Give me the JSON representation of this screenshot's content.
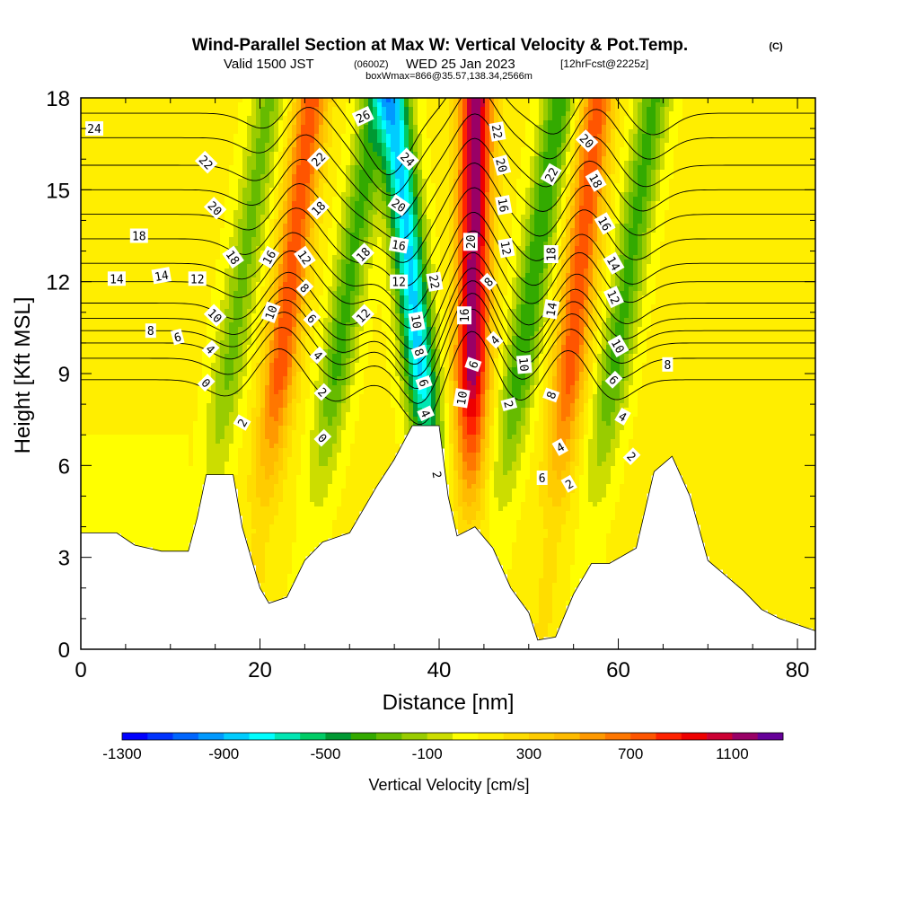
{
  "title": {
    "main": "Wind-Parallel Section at Max W: Vertical Velocity & Pot.Temp.",
    "copyright": "(C)",
    "valid_prefix": "Valid 1500 JST",
    "valid_utc": "(0600Z)",
    "valid_date": "WED 25 Jan 2023",
    "forecast_info": "[12hrFcst@2225z]",
    "box_info": "boxWmax=866@35.57,138.34,2566m"
  },
  "chart_data": {
    "type": "heatmap",
    "xlabel": "Distance [nm]",
    "ylabel": "Height [Kft MSL]",
    "xlim": [
      0,
      82
    ],
    "ylim": [
      0,
      18
    ],
    "xticks": [
      0,
      20,
      40,
      60,
      80
    ],
    "yticks": [
      0,
      3,
      6,
      9,
      12,
      15,
      18
    ],
    "colorbar": {
      "label": "Vertical Velocity [cm/s]",
      "min": -1300,
      "max": 1300,
      "step": 100,
      "tick_labels": [
        "-1300",
        "-900",
        "-500",
        "-100",
        "300",
        "700",
        "1100"
      ],
      "colors": [
        "#0000ff",
        "#0033ff",
        "#0066ff",
        "#0099ff",
        "#00ccff",
        "#00ffff",
        "#00e6b3",
        "#00cc66",
        "#009933",
        "#33aa00",
        "#66bb00",
        "#99cc00",
        "#ccdd00",
        "#ffff00",
        "#ffee00",
        "#ffdd00",
        "#ffcc00",
        "#ffbb00",
        "#ff9900",
        "#ff7700",
        "#ff5500",
        "#ff2200",
        "#ee0000",
        "#cc0033",
        "#990066",
        "#660099"
      ]
    },
    "terrain_top_kft": [
      [
        0,
        3.8
      ],
      [
        4,
        3.8
      ],
      [
        6,
        3.4
      ],
      [
        9,
        3.2
      ],
      [
        12,
        3.2
      ],
      [
        13,
        4.3
      ],
      [
        14,
        5.7
      ],
      [
        17,
        5.7
      ],
      [
        18,
        4.0
      ],
      [
        20,
        2.0
      ],
      [
        21,
        1.5
      ],
      [
        23,
        1.7
      ],
      [
        25,
        2.9
      ],
      [
        27,
        3.5
      ],
      [
        30,
        3.8
      ],
      [
        33,
        5.3
      ],
      [
        35,
        6.2
      ],
      [
        37,
        7.3
      ],
      [
        40,
        7.3
      ],
      [
        41,
        5.0
      ],
      [
        42,
        3.7
      ],
      [
        44,
        4.0
      ],
      [
        46,
        3.3
      ],
      [
        48,
        2.0
      ],
      [
        50,
        1.2
      ],
      [
        51,
        0.3
      ],
      [
        53,
        0.4
      ],
      [
        55,
        1.8
      ],
      [
        57,
        2.8
      ],
      [
        59,
        2.8
      ],
      [
        62,
        3.3
      ],
      [
        64,
        5.8
      ],
      [
        66,
        6.3
      ],
      [
        68,
        5.0
      ],
      [
        70,
        2.9
      ],
      [
        72,
        2.4
      ],
      [
        74,
        1.9
      ],
      [
        76,
        1.3
      ],
      [
        78,
        1.0
      ],
      [
        80,
        0.8
      ],
      [
        82,
        0.6
      ]
    ],
    "velocity_bands": [
      {
        "center_x": 15,
        "lean": 0.5,
        "value": -350
      },
      {
        "center_x": 21,
        "lean": 0.4,
        "value": 650
      },
      {
        "center_x": 27,
        "lean": 0.5,
        "value": -450
      },
      {
        "center_x": 39,
        "lean": -0.35,
        "value": -950
      },
      {
        "center_x": 43.5,
        "lean": 0.05,
        "value": 1050
      },
      {
        "center_x": 47.5,
        "lean": 0.5,
        "value": -500
      },
      {
        "center_x": 53.5,
        "lean": 0.35,
        "value": 650
      },
      {
        "center_x": 58,
        "lean": 0.5,
        "value": -450
      }
    ],
    "theta_contours": [
      {
        "label": "0",
        "height_kft": 8.8
      },
      {
        "label": "2",
        "height_kft": 9.5
      },
      {
        "label": "4",
        "height_kft": 10.0
      },
      {
        "label": "6",
        "height_kft": 10.4
      },
      {
        "label": "8",
        "height_kft": 10.8
      },
      {
        "label": "10",
        "height_kft": 11.3
      },
      {
        "label": "12",
        "height_kft": 12.0
      },
      {
        "label": "14",
        "height_kft": 12.6
      },
      {
        "label": "16",
        "height_kft": 13.4
      },
      {
        "label": "18",
        "height_kft": 14.2
      },
      {
        "label": "20",
        "height_kft": 15.0
      },
      {
        "label": "22",
        "height_kft": 15.8
      },
      {
        "label": "24",
        "height_kft": 16.7
      },
      {
        "label": "26",
        "height_kft": 17.5
      }
    ],
    "contour_labels": [
      {
        "text": "24",
        "x": 1.5,
        "y": 17.0,
        "rot": 0
      },
      {
        "text": "22",
        "x": 14,
        "y": 15.9,
        "rot": 45
      },
      {
        "text": "20",
        "x": 15,
        "y": 14.4,
        "rot": 45
      },
      {
        "text": "18",
        "x": 6.5,
        "y": 13.5,
        "rot": 0
      },
      {
        "text": "18",
        "x": 17,
        "y": 12.8,
        "rot": 55
      },
      {
        "text": "16",
        "x": 21,
        "y": 12.8,
        "rot": -60
      },
      {
        "text": "14",
        "x": 4,
        "y": 12.1,
        "rot": 0
      },
      {
        "text": "14",
        "x": 9,
        "y": 12.2,
        "rot": -10
      },
      {
        "text": "12",
        "x": 13,
        "y": 12.1,
        "rot": 0
      },
      {
        "text": "12",
        "x": 25,
        "y": 12.8,
        "rot": 55
      },
      {
        "text": "8",
        "x": 25,
        "y": 11.8,
        "rot": 45
      },
      {
        "text": "6",
        "x": 25.8,
        "y": 10.8,
        "rot": 45
      },
      {
        "text": "10",
        "x": 15,
        "y": 10.9,
        "rot": 45
      },
      {
        "text": "10",
        "x": 21.2,
        "y": 11.0,
        "rot": -70
      },
      {
        "text": "8",
        "x": 7.8,
        "y": 10.4,
        "rot": 0
      },
      {
        "text": "6",
        "x": 10.8,
        "y": 10.2,
        "rot": -15
      },
      {
        "text": "4",
        "x": 14.5,
        "y": 9.8,
        "rot": 45
      },
      {
        "text": "4",
        "x": 26.5,
        "y": 9.6,
        "rot": 45
      },
      {
        "text": "0",
        "x": 14,
        "y": 8.7,
        "rot": 45
      },
      {
        "text": "2",
        "x": 18,
        "y": 7.4,
        "rot": -60
      },
      {
        "text": "2",
        "x": 27,
        "y": 8.4,
        "rot": 45
      },
      {
        "text": "0",
        "x": 27,
        "y": 6.9,
        "rot": 45
      },
      {
        "text": "26",
        "x": 31.5,
        "y": 17.4,
        "rot": -25
      },
      {
        "text": "22",
        "x": 26.5,
        "y": 16.0,
        "rot": -45
      },
      {
        "text": "18",
        "x": 26.5,
        "y": 14.4,
        "rot": -45
      },
      {
        "text": "18",
        "x": 31.5,
        "y": 12.9,
        "rot": -45
      },
      {
        "text": "12",
        "x": 31.5,
        "y": 10.9,
        "rot": -45
      },
      {
        "text": "24",
        "x": 36.5,
        "y": 16.0,
        "rot": 45
      },
      {
        "text": "20",
        "x": 35.5,
        "y": 14.5,
        "rot": 35
      },
      {
        "text": "16",
        "x": 35.5,
        "y": 13.2,
        "rot": 10
      },
      {
        "text": "12",
        "x": 35.5,
        "y": 12.0,
        "rot": 0
      },
      {
        "text": "22",
        "x": 39.5,
        "y": 12.0,
        "rot": 80
      },
      {
        "text": "10",
        "x": 37.5,
        "y": 10.7,
        "rot": 80
      },
      {
        "text": "8",
        "x": 37.8,
        "y": 9.7,
        "rot": 70
      },
      {
        "text": "6",
        "x": 38.3,
        "y": 8.7,
        "rot": 70
      },
      {
        "text": "4",
        "x": 38.5,
        "y": 7.7,
        "rot": 65
      },
      {
        "text": "2",
        "x": 39.8,
        "y": 5.7,
        "rot": 80
      },
      {
        "text": "20",
        "x": 43.5,
        "y": 13.3,
        "rot": -90
      },
      {
        "text": "16",
        "x": 42.8,
        "y": 10.9,
        "rot": -90
      },
      {
        "text": "10",
        "x": 42.5,
        "y": 8.2,
        "rot": -80
      },
      {
        "text": "6",
        "x": 43.8,
        "y": 9.3,
        "rot": -70
      },
      {
        "text": "8",
        "x": 45.5,
        "y": 12.0,
        "rot": -45
      },
      {
        "text": "4",
        "x": 46.2,
        "y": 10.1,
        "rot": -45
      },
      {
        "text": "22",
        "x": 46.5,
        "y": 16.9,
        "rot": 80
      },
      {
        "text": "20",
        "x": 47,
        "y": 15.8,
        "rot": 75
      },
      {
        "text": "16",
        "x": 47.2,
        "y": 14.5,
        "rot": 80
      },
      {
        "text": "12",
        "x": 47.5,
        "y": 13.1,
        "rot": 80
      },
      {
        "text": "10",
        "x": 49.5,
        "y": 9.3,
        "rot": 85
      },
      {
        "text": "2",
        "x": 47.8,
        "y": 8.0,
        "rot": 75
      },
      {
        "text": "6",
        "x": 51.5,
        "y": 5.6,
        "rot": 0
      },
      {
        "text": "22",
        "x": 52.5,
        "y": 15.5,
        "rot": -60
      },
      {
        "text": "18",
        "x": 52.5,
        "y": 12.9,
        "rot": -90
      },
      {
        "text": "14",
        "x": 52.5,
        "y": 11.1,
        "rot": -80
      },
      {
        "text": "8",
        "x": 52.5,
        "y": 8.3,
        "rot": -70
      },
      {
        "text": "4",
        "x": 53.5,
        "y": 6.6,
        "rot": -30
      },
      {
        "text": "2",
        "x": 54.5,
        "y": 5.4,
        "rot": -30
      },
      {
        "text": "20",
        "x": 56.5,
        "y": 16.6,
        "rot": 45
      },
      {
        "text": "18",
        "x": 57.5,
        "y": 15.3,
        "rot": 60
      },
      {
        "text": "16",
        "x": 58.5,
        "y": 13.9,
        "rot": 60
      },
      {
        "text": "14",
        "x": 59.5,
        "y": 12.6,
        "rot": 60
      },
      {
        "text": "12",
        "x": 59.5,
        "y": 11.5,
        "rot": 65
      },
      {
        "text": "10",
        "x": 60,
        "y": 9.9,
        "rot": 60
      },
      {
        "text": "6",
        "x": 59.5,
        "y": 8.8,
        "rot": 45
      },
      {
        "text": "4",
        "x": 60.5,
        "y": 7.6,
        "rot": 30
      },
      {
        "text": "2",
        "x": 61.5,
        "y": 6.3,
        "rot": 45
      },
      {
        "text": "8",
        "x": 65.5,
        "y": 9.3,
        "rot": 0
      }
    ]
  }
}
